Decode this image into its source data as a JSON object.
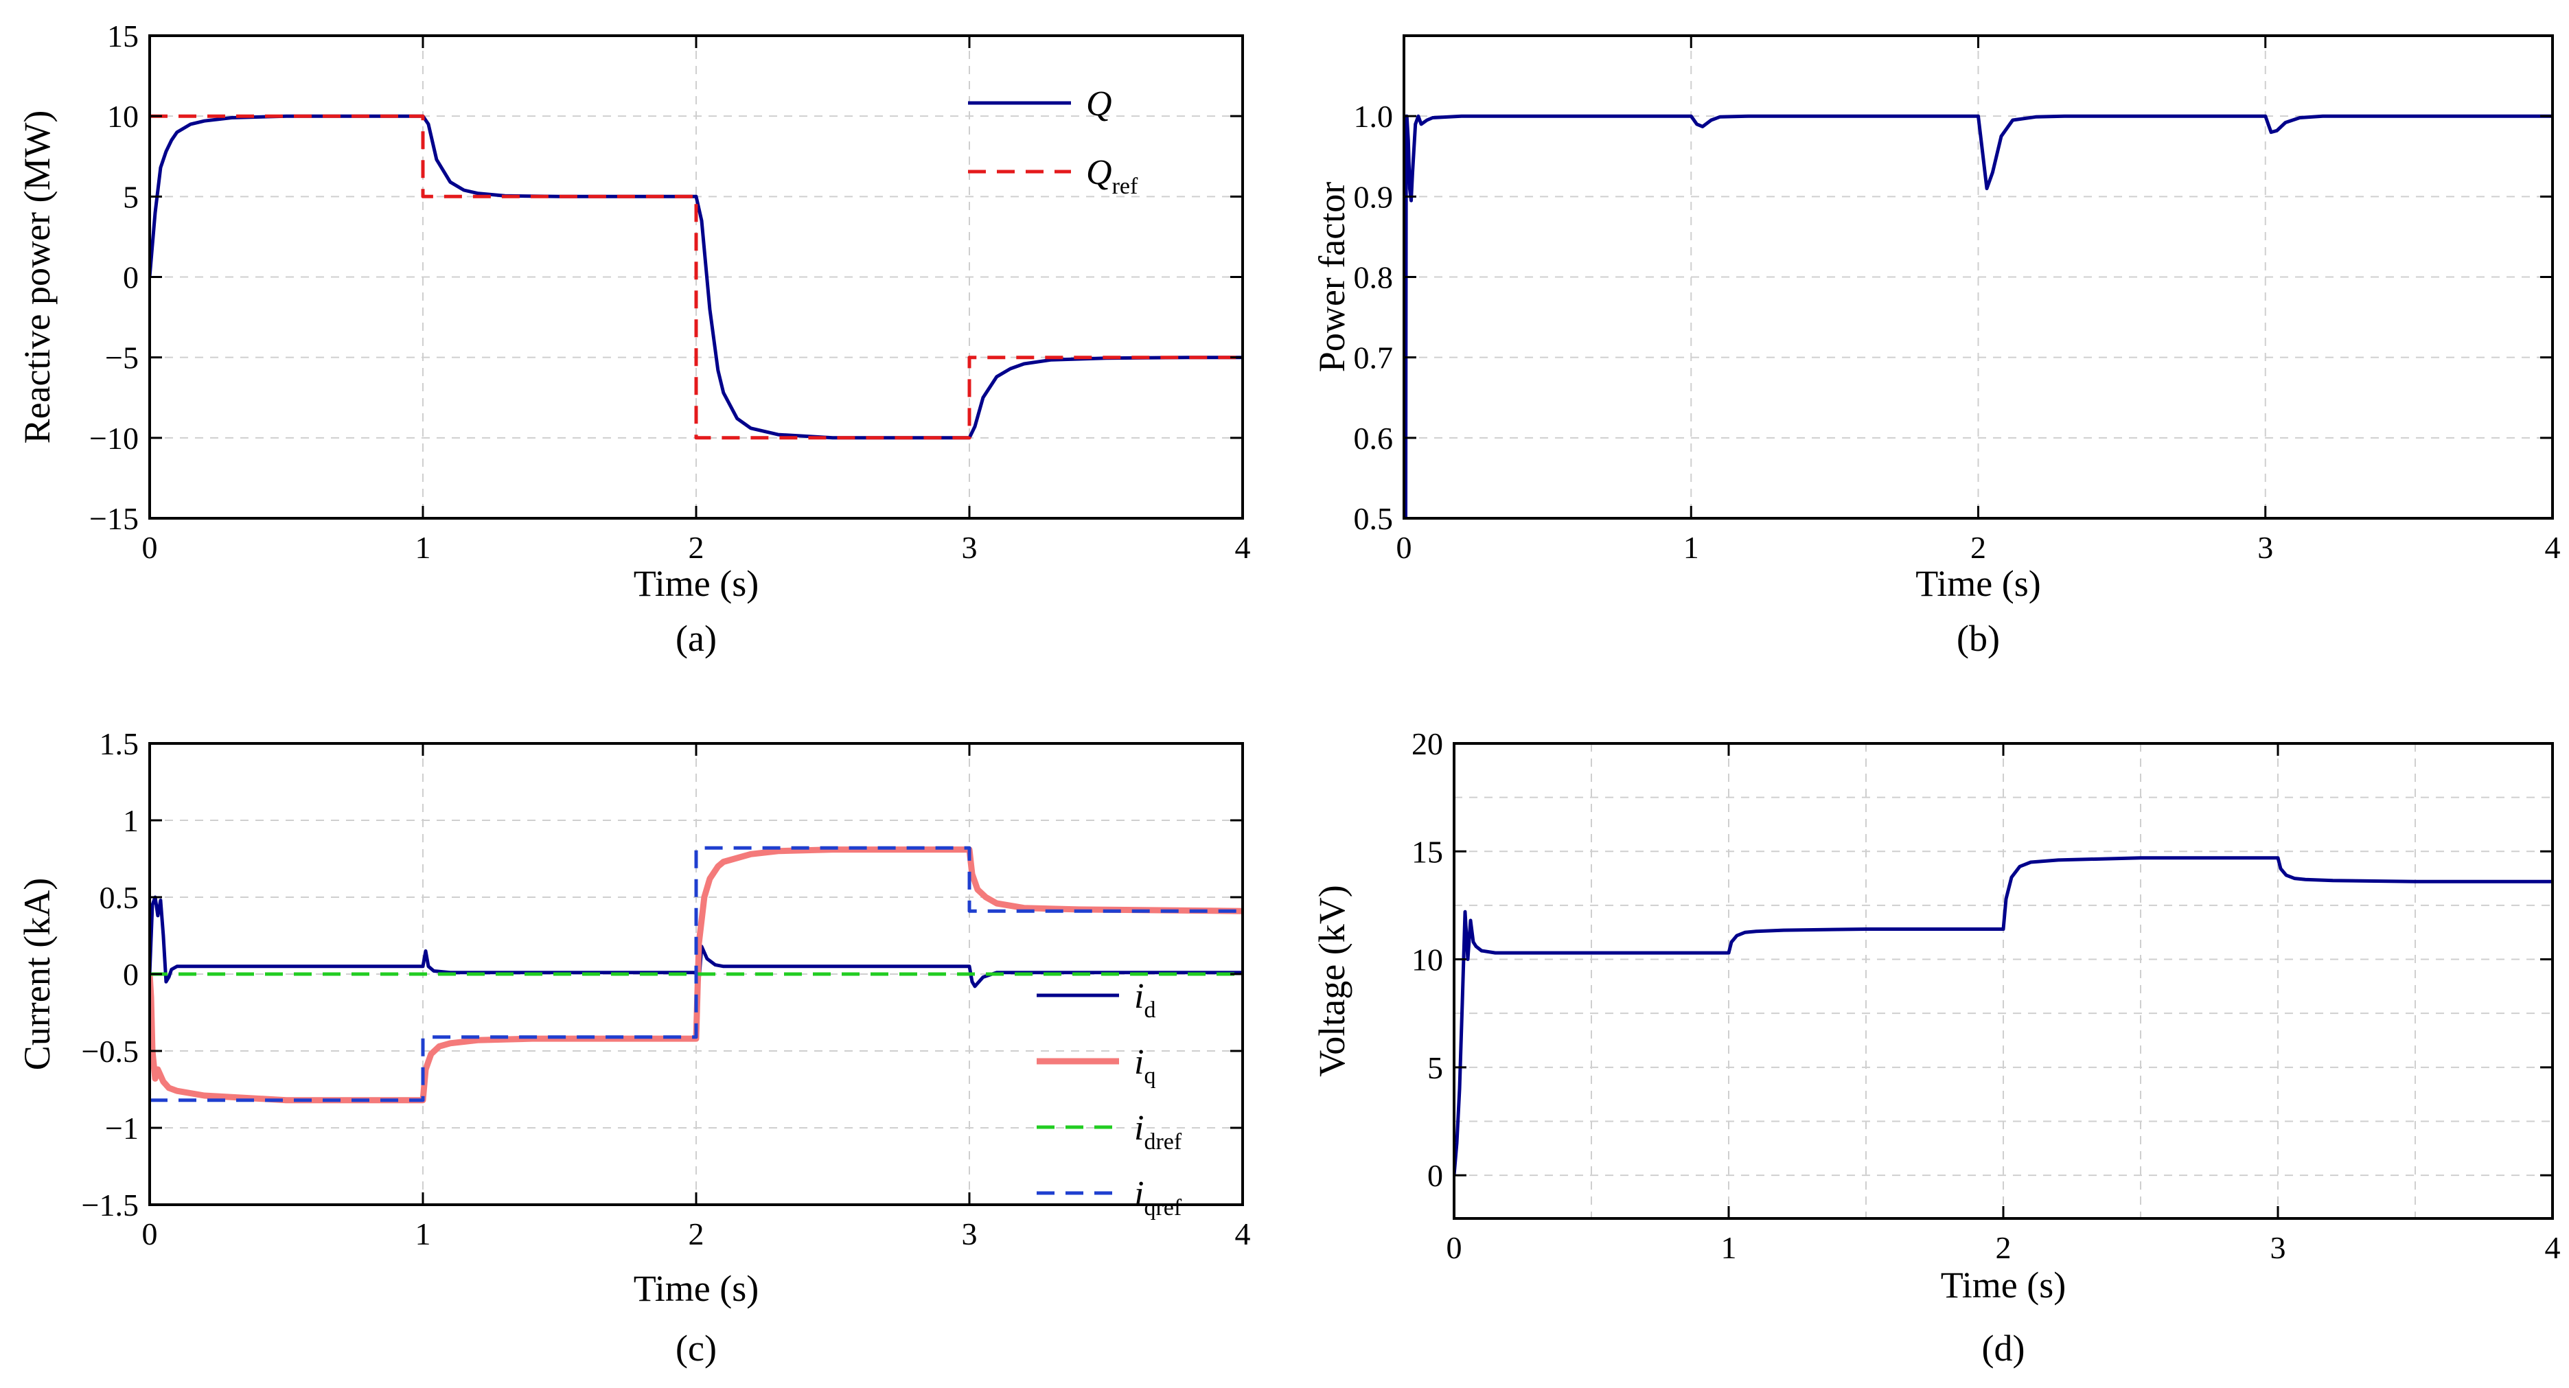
{
  "chart_data": [
    {
      "type": "line",
      "panel_label": "(a)",
      "xlabel": "Time (s)",
      "ylabel": "Reactive power (MW)",
      "xlim": [
        0,
        4
      ],
      "ylim": [
        -15,
        15
      ],
      "xticks": [
        0,
        1,
        2,
        3,
        4
      ],
      "xtick_labels": [
        "0",
        "1",
        "2",
        "3",
        "4"
      ],
      "yticks": [
        -15,
        -10,
        -5,
        0,
        5,
        10,
        15
      ],
      "ytick_labels": [
        "−15",
        "−10",
        "−5",
        "0",
        "5",
        "10",
        "15"
      ],
      "grid": true,
      "legend_position": "top-right",
      "series": [
        {
          "name": "Q",
          "color": "#00008b",
          "dash": "solid",
          "x": [
            0,
            0.01,
            0.02,
            0.04,
            0.06,
            0.08,
            0.1,
            0.15,
            0.2,
            0.3,
            0.5,
            0.7,
            1.0,
            1.02,
            1.05,
            1.1,
            1.15,
            1.2,
            1.3,
            1.5,
            2.0,
            2.02,
            2.05,
            2.08,
            2.1,
            2.15,
            2.2,
            2.3,
            2.5,
            2.7,
            3.0,
            3.02,
            3.05,
            3.1,
            3.15,
            3.2,
            3.3,
            3.5,
            3.8,
            4.0
          ],
          "y": [
            0,
            2,
            4,
            6.8,
            7.8,
            8.5,
            9.0,
            9.5,
            9.7,
            9.9,
            10,
            10,
            10,
            9.5,
            7.3,
            5.9,
            5.4,
            5.2,
            5.05,
            5,
            5,
            3.5,
            -2,
            -5.8,
            -7.2,
            -8.8,
            -9.4,
            -9.8,
            -10,
            -10,
            -10,
            -9.3,
            -7.5,
            -6.2,
            -5.7,
            -5.4,
            -5.15,
            -5.05,
            -5,
            -5
          ]
        },
        {
          "name": "Qref",
          "color": "#e41a1c",
          "dash": "dashed",
          "x": [
            0,
            1,
            1,
            2,
            2,
            3,
            3,
            4
          ],
          "y": [
            10,
            10,
            5,
            5,
            -10,
            -10,
            -5,
            -5
          ]
        }
      ]
    },
    {
      "type": "line",
      "panel_label": "(b)",
      "xlabel": "Time (s)",
      "ylabel": "Power factor",
      "xlim": [
        0,
        4
      ],
      "ylim": [
        0.5,
        1.1
      ],
      "xticks": [
        0,
        1,
        2,
        3,
        4
      ],
      "xtick_labels": [
        "0",
        "1",
        "2",
        "3",
        "4"
      ],
      "yticks": [
        0.5,
        0.6,
        0.7,
        0.8,
        0.9,
        1.0
      ],
      "ytick_labels": [
        "0.5",
        "0.6",
        "0.7",
        "0.8",
        "0.9",
        "1.0"
      ],
      "grid": true,
      "series": [
        {
          "name": "",
          "color": "#00008b",
          "dash": "solid",
          "x": [
            0,
            0.003,
            0.006,
            0.008,
            0.01,
            0.015,
            0.02,
            0.025,
            0.03,
            0.04,
            0.05,
            0.06,
            0.08,
            0.1,
            0.2,
            0.5,
            1.0,
            1.02,
            1.04,
            1.07,
            1.1,
            1.2,
            1.5,
            2.0,
            2.01,
            2.03,
            2.05,
            2.08,
            2.12,
            2.2,
            2.3,
            2.5,
            3.0,
            3.01,
            3.02,
            3.04,
            3.07,
            3.12,
            3.2,
            3.5,
            4.0
          ],
          "y": [
            0.5,
            0.5,
            0.5,
            1.0,
            1.0,
            0.97,
            0.91,
            0.895,
            0.93,
            0.99,
            1.0,
            0.99,
            0.995,
            0.998,
            1.0,
            1.0,
            1.0,
            0.99,
            0.987,
            0.995,
            0.999,
            1.0,
            1.0,
            1.0,
            0.97,
            0.91,
            0.93,
            0.975,
            0.995,
            0.999,
            1.0,
            1.0,
            1.0,
            0.99,
            0.98,
            0.982,
            0.992,
            0.998,
            1.0,
            1.0,
            1.0
          ]
        }
      ]
    },
    {
      "type": "line",
      "panel_label": "(c)",
      "xlabel": "Time (s)",
      "ylabel": "Current (kA)",
      "xlim": [
        0,
        4
      ],
      "ylim": [
        -1.5,
        1.5
      ],
      "xticks": [
        0,
        1,
        2,
        3,
        4
      ],
      "xtick_labels": [
        "0",
        "1",
        "2",
        "3",
        "4"
      ],
      "yticks": [
        -1.5,
        -1,
        -0.5,
        0,
        0.5,
        1,
        1.5
      ],
      "ytick_labels": [
        "−1.5",
        "−1",
        "−0.5",
        "0",
        "0.5",
        "1",
        "1.5"
      ],
      "grid": true,
      "legend_position": "bottom-right",
      "series": [
        {
          "name": "id",
          "legend_main": "i",
          "legend_sub": "d",
          "color": "#00008b",
          "dash": "solid",
          "x": [
            0,
            0.01,
            0.02,
            0.03,
            0.04,
            0.05,
            0.06,
            0.07,
            0.08,
            0.1,
            0.15,
            0.5,
            1.0,
            1.01,
            1.02,
            1.04,
            1.1,
            1.5,
            2.0,
            2.01,
            2.02,
            2.04,
            2.07,
            2.1,
            2.5,
            3.0,
            3.01,
            3.02,
            3.05,
            3.1,
            3.5,
            4.0
          ],
          "y": [
            0,
            0.45,
            0.5,
            0.38,
            0.48,
            0.25,
            -0.05,
            -0.02,
            0.03,
            0.05,
            0.05,
            0.05,
            0.05,
            0.15,
            0.05,
            0.02,
            0.01,
            0.01,
            0.01,
            -0.05,
            0.18,
            0.1,
            0.06,
            0.05,
            0.05,
            0.05,
            -0.05,
            -0.08,
            -0.02,
            0.01,
            0.01,
            0.01
          ]
        },
        {
          "name": "iq",
          "legend_main": "i",
          "legend_sub": "q",
          "color": "#f47a7a",
          "dash": "solid",
          "x": [
            0,
            0.005,
            0.01,
            0.02,
            0.03,
            0.05,
            0.07,
            0.1,
            0.2,
            0.3,
            0.5,
            1.0,
            1.01,
            1.03,
            1.06,
            1.1,
            1.2,
            1.4,
            2.0,
            2.01,
            2.03,
            2.05,
            2.08,
            2.1,
            2.2,
            2.3,
            2.5,
            3.0,
            3.01,
            3.03,
            3.06,
            3.1,
            3.2,
            3.4,
            4.0
          ],
          "y": [
            0,
            -0.15,
            -0.5,
            -0.68,
            -0.62,
            -0.7,
            -0.74,
            -0.76,
            -0.79,
            -0.8,
            -0.82,
            -0.82,
            -0.62,
            -0.52,
            -0.47,
            -0.45,
            -0.43,
            -0.42,
            -0.42,
            0.2,
            0.5,
            0.62,
            0.7,
            0.73,
            0.78,
            0.8,
            0.81,
            0.81,
            0.65,
            0.55,
            0.5,
            0.46,
            0.43,
            0.42,
            0.41
          ]
        },
        {
          "name": "idref",
          "legend_main": "i",
          "legend_sub": "dref",
          "color": "#22cc22",
          "dash": "dashed",
          "x": [
            0,
            4
          ],
          "y": [
            0,
            0
          ]
        },
        {
          "name": "iqref",
          "legend_main": "i",
          "legend_sub": "qref",
          "color": "#1f3fcf",
          "dash": "dashed",
          "x": [
            0,
            1,
            1,
            2,
            2,
            3,
            3,
            4
          ],
          "y": [
            -0.82,
            -0.82,
            -0.41,
            -0.41,
            0.82,
            0.82,
            0.41,
            0.41
          ]
        }
      ]
    },
    {
      "type": "line",
      "panel_label": "(d)",
      "xlabel": "Time (s)",
      "ylabel": "Voltage (kV)",
      "xlim": [
        0,
        4
      ],
      "ylim": [
        -2,
        20
      ],
      "xticks": [
        0,
        1,
        2,
        3,
        4
      ],
      "xtick_labels": [
        "0",
        "1",
        "2",
        "3",
        "4"
      ],
      "yticks": [
        0,
        5,
        10,
        15,
        20
      ],
      "ytick_labels": [
        "0",
        "5",
        "10",
        "15",
        "20"
      ],
      "minor_gridlines_x": [
        0.5,
        1.5,
        2.5,
        3.5
      ],
      "minor_gridlines_y": [
        2.5,
        7.5,
        12.5,
        17.5
      ],
      "grid": true,
      "series": [
        {
          "name": "",
          "color": "#00008b",
          "dash": "solid",
          "x": [
            0,
            0.01,
            0.02,
            0.03,
            0.04,
            0.05,
            0.06,
            0.07,
            0.08,
            0.1,
            0.15,
            0.2,
            0.5,
            1.0,
            1.01,
            1.03,
            1.06,
            1.1,
            1.2,
            1.5,
            2.0,
            2.01,
            2.03,
            2.06,
            2.1,
            2.2,
            2.5,
            3.0,
            3.01,
            3.03,
            3.06,
            3.1,
            3.2,
            3.5,
            4.0
          ],
          "y": [
            0,
            1.5,
            4,
            8,
            12.2,
            10,
            11.8,
            10.8,
            10.6,
            10.4,
            10.3,
            10.3,
            10.3,
            10.3,
            10.8,
            11.1,
            11.25,
            11.3,
            11.35,
            11.4,
            11.4,
            12.8,
            13.8,
            14.3,
            14.5,
            14.6,
            14.7,
            14.7,
            14.2,
            13.9,
            13.75,
            13.7,
            13.65,
            13.6,
            13.6
          ]
        }
      ]
    }
  ]
}
